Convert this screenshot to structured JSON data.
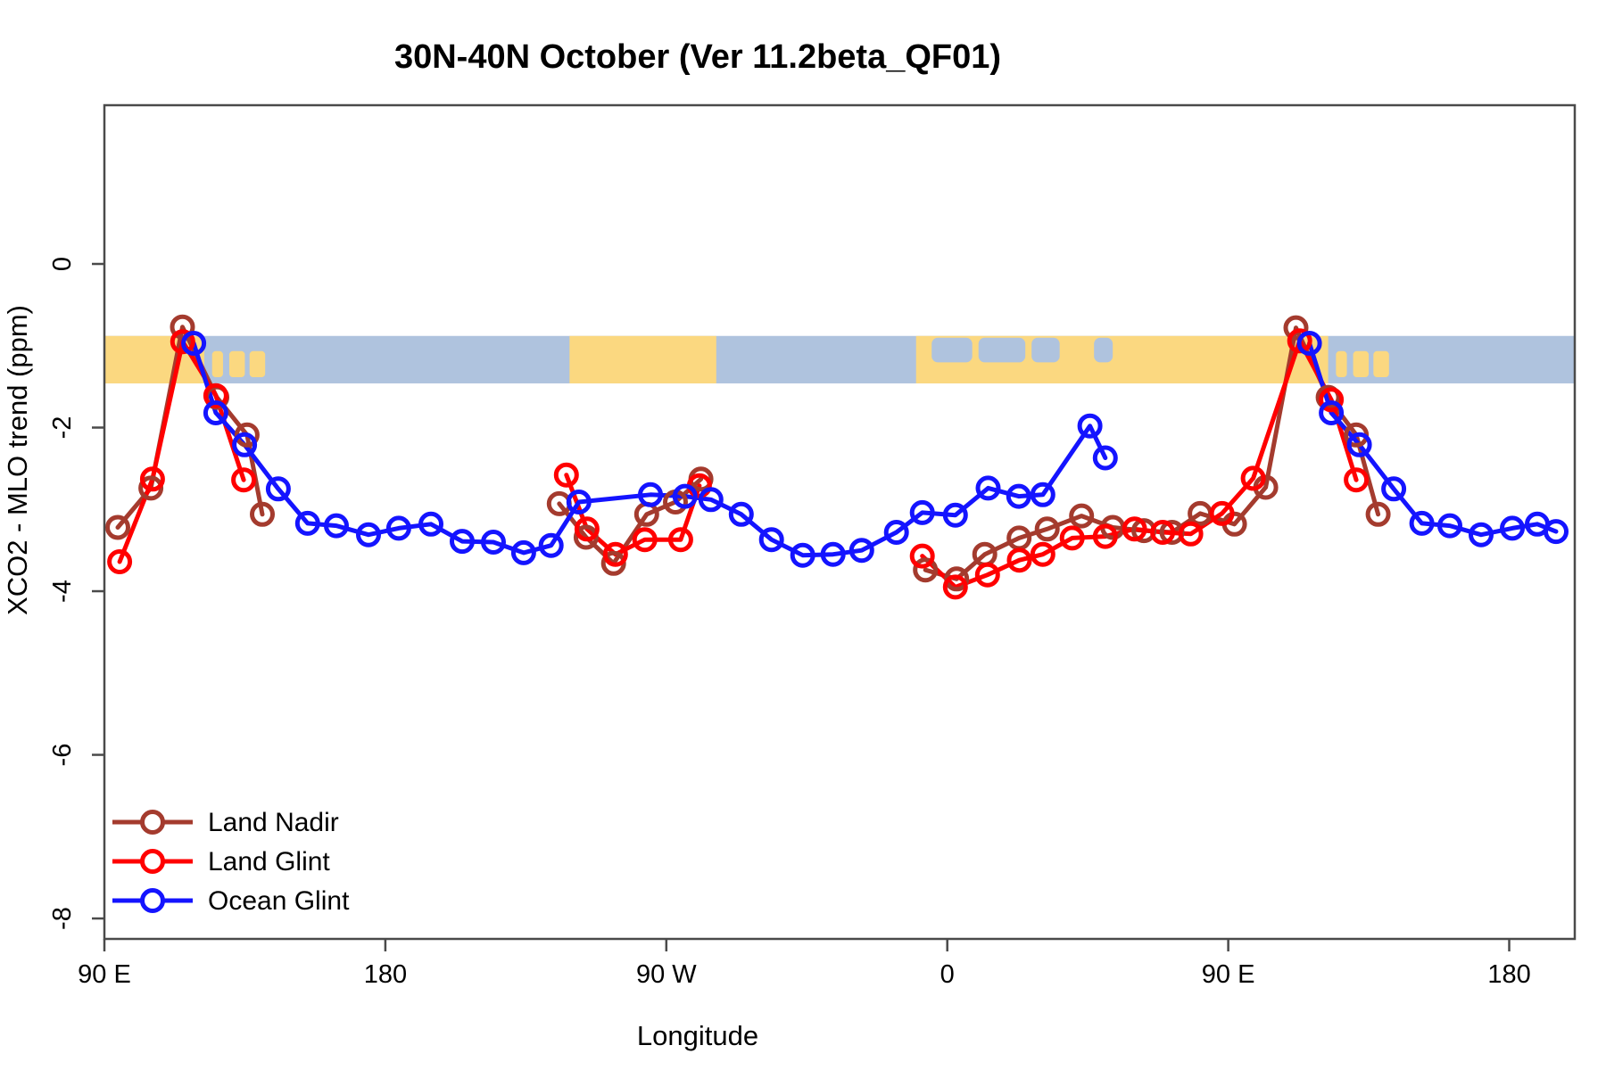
{
  "chart_data": {
    "type": "line",
    "title": "30N-40N October (Ver 11.2beta_QF01)",
    "xlabel": "Longitude",
    "ylabel": "XCO2 - MLO trend (ppm)",
    "x_axis": {
      "range": [
        90,
        561
      ],
      "ticks": [
        90,
        180,
        270,
        360,
        450,
        540
      ],
      "tick_labels": [
        "90 E",
        "180",
        "90 W",
        "0",
        "90 E",
        "180"
      ],
      "note": "longitude wraps: 90E eastward around the globe past 180 back to 180"
    },
    "y_axis": {
      "range": [
        -8.25,
        1.94
      ],
      "ticks": [
        0,
        -2,
        -4,
        -6,
        -8
      ],
      "tick_labels": [
        "0",
        "-2",
        "-4",
        "-6",
        "-8"
      ]
    },
    "grid": false,
    "legend_position": "bottom-left-inside",
    "map_band": {
      "description": "world-map strip of the 30N-40N latitude band drawn across the plot",
      "value_top": -0.88,
      "value_bottom": -1.46,
      "ocean_color": "#AFC3DE",
      "land_color": "#FBD880",
      "land_segments": [
        {
          "name": "asia-east",
          "t": [
            90,
            122
          ]
        },
        {
          "name": "north-america",
          "t": [
            239,
            286
          ]
        },
        {
          "name": "africa-eurasia",
          "t": [
            350,
            482
          ]
        }
      ],
      "islands": [
        {
          "name": "japan",
          "t": [
            124.5,
            128
          ]
        },
        {
          "name": "japan",
          "t": [
            130,
            135
          ]
        },
        {
          "name": "japan",
          "t": [
            136.5,
            141.5
          ]
        },
        {
          "name": "japan-wrap",
          "t": [
            484.5,
            488
          ]
        },
        {
          "name": "japan-wrap",
          "t": [
            490,
            495
          ]
        },
        {
          "name": "japan-wrap",
          "t": [
            496.5,
            501.5
          ]
        }
      ],
      "sea_patches": [
        {
          "name": "mediterranean-west",
          "t": [
            355,
            368
          ]
        },
        {
          "name": "mediterranean-central",
          "t": [
            370,
            385
          ]
        },
        {
          "name": "aegean",
          "t": [
            387,
            396
          ]
        },
        {
          "name": "caspian",
          "t": [
            407,
            413
          ]
        }
      ]
    },
    "series": [
      {
        "name": "Land Nadir",
        "color": "#A43B2E",
        "marker": "open-circle",
        "segments": [
          [
            [
              94.3,
              -3.22
            ],
            [
              104.9,
              -2.74
            ],
            [
              115,
              -0.77
            ],
            [
              126,
              -1.63
            ],
            [
              135.7,
              -2.09
            ],
            [
              140.6,
              -3.06
            ]
          ],
          [
            [
              235.7,
              -2.93
            ],
            [
              244.3,
              -3.34
            ],
            [
              253.1,
              -3.66
            ],
            [
              263.7,
              -3.06
            ],
            [
              272.9,
              -2.91
            ],
            [
              281.1,
              -2.63
            ]
          ],
          [
            [
              353,
              -3.74
            ],
            [
              363,
              -3.85
            ],
            [
              372,
              -3.55
            ],
            [
              383,
              -3.35
            ],
            [
              392,
              -3.24
            ],
            [
              403,
              -3.08
            ],
            [
              413,
              -3.22
            ],
            [
              423,
              -3.26
            ],
            [
              432,
              -3.28
            ],
            [
              441,
              -3.05
            ],
            [
              452,
              -3.18
            ],
            [
              462,
              -2.73
            ],
            [
              471.7,
              -0.78
            ],
            [
              482,
              -1.63
            ],
            [
              491,
              -2.09
            ],
            [
              498,
              -3.06
            ]
          ]
        ]
      },
      {
        "name": "Land Glint",
        "color": "#FF0000",
        "marker": "open-circle",
        "segments": [
          [
            [
              94.9,
              -3.64
            ],
            [
              105.4,
              -2.63
            ],
            [
              115.1,
              -0.95
            ],
            [
              125.7,
              -1.61
            ],
            [
              134.6,
              -2.64
            ]
          ],
          [
            [
              238,
              -2.58
            ],
            [
              244.6,
              -3.24
            ],
            [
              253.7,
              -3.55
            ],
            [
              263.1,
              -3.37
            ],
            [
              274.6,
              -3.37
            ],
            [
              280.6,
              -2.71
            ]
          ],
          [
            [
              352,
              -3.57
            ],
            [
              362.6,
              -3.95
            ],
            [
              372.9,
              -3.8
            ],
            [
              383.1,
              -3.62
            ],
            [
              390.6,
              -3.55
            ],
            [
              400,
              -3.35
            ],
            [
              410.6,
              -3.33
            ],
            [
              420,
              -3.24
            ],
            [
              429,
              -3.28
            ],
            [
              438,
              -3.3
            ],
            [
              448,
              -3.05
            ],
            [
              458,
              -2.62
            ],
            [
              472.9,
              -0.94
            ],
            [
              483,
              -1.66
            ],
            [
              491,
              -2.64
            ]
          ]
        ]
      },
      {
        "name": "Ocean Glint",
        "color": "#1414FF",
        "marker": "open-circle",
        "segments": [
          [
            [
              118.6,
              -0.97
            ],
            [
              125.7,
              -1.82
            ],
            [
              134.9,
              -2.21
            ],
            [
              145.7,
              -2.75
            ],
            [
              155.1,
              -3.17
            ],
            [
              164.3,
              -3.2
            ],
            [
              174.6,
              -3.31
            ],
            [
              184.3,
              -3.23
            ],
            [
              194.6,
              -3.18
            ],
            [
              204.6,
              -3.39
            ],
            [
              214.6,
              -3.4
            ],
            [
              224.3,
              -3.53
            ],
            [
              233.1,
              -3.44
            ],
            [
              242,
              -2.91
            ],
            [
              264.9,
              -2.82
            ],
            [
              276,
              -2.84
            ],
            [
              284.3,
              -2.88
            ],
            [
              294,
              -3.06
            ],
            [
              303.7,
              -3.37
            ],
            [
              313.7,
              -3.56
            ],
            [
              323.4,
              -3.55
            ],
            [
              332.6,
              -3.5
            ],
            [
              343.7,
              -3.28
            ],
            [
              352,
              -3.04
            ],
            [
              362.6,
              -3.07
            ],
            [
              373.1,
              -2.74
            ],
            [
              382.9,
              -2.84
            ],
            [
              390.6,
              -2.82
            ],
            [
              405.7,
              -1.98
            ],
            [
              410.6,
              -2.37
            ]
          ],
          [
            [
              476,
              -0.97
            ],
            [
              483,
              -1.82
            ],
            [
              492,
              -2.21
            ],
            [
              503,
              -2.75
            ],
            [
              512,
              -3.17
            ],
            [
              521,
              -3.2
            ],
            [
              531,
              -3.31
            ],
            [
              541,
              -3.23
            ],
            [
              549,
              -3.18
            ],
            [
              555,
              -3.27
            ]
          ]
        ]
      }
    ],
    "legend": [
      "Land Nadir",
      "Land Glint",
      "Ocean Glint"
    ]
  }
}
